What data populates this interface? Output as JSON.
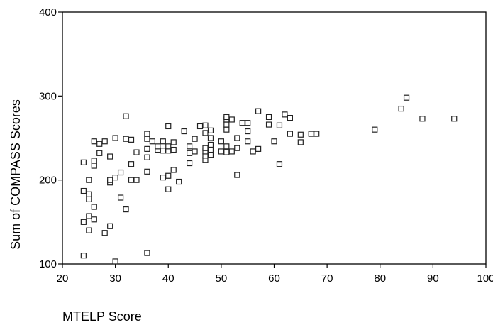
{
  "chart_data": {
    "type": "scatter",
    "xlabel": "MTELP Score",
    "ylabel": "Sum of COMPASS Scores",
    "xlim": [
      20,
      100
    ],
    "ylim": [
      100,
      400
    ],
    "xticks": [
      20,
      30,
      40,
      50,
      60,
      70,
      80,
      90,
      100
    ],
    "yticks": [
      100,
      200,
      300,
      400
    ],
    "xtick_labels": [
      "20",
      "30",
      "40",
      "50",
      "60",
      "70",
      "80",
      "90",
      "100"
    ],
    "ytick_labels": [
      "100",
      "200",
      "300",
      "400"
    ],
    "grid": false,
    "marker": "open-square",
    "points": [
      [
        24,
        110
      ],
      [
        24,
        150
      ],
      [
        24,
        187
      ],
      [
        24,
        221
      ],
      [
        25,
        140
      ],
      [
        25,
        157
      ],
      [
        25,
        177
      ],
      [
        25,
        183
      ],
      [
        25,
        200
      ],
      [
        26,
        153
      ],
      [
        26,
        168
      ],
      [
        26,
        217
      ],
      [
        26,
        223
      ],
      [
        26,
        246
      ],
      [
        27,
        232
      ],
      [
        27,
        243
      ],
      [
        28,
        137
      ],
      [
        28,
        246
      ],
      [
        29,
        145
      ],
      [
        29,
        197
      ],
      [
        29,
        200
      ],
      [
        29,
        228
      ],
      [
        30,
        103
      ],
      [
        30,
        203
      ],
      [
        30,
        250
      ],
      [
        31,
        179
      ],
      [
        31,
        209
      ],
      [
        32,
        165
      ],
      [
        32,
        249
      ],
      [
        32,
        276
      ],
      [
        33,
        200
      ],
      [
        33,
        219
      ],
      [
        33,
        248
      ],
      [
        34,
        200
      ],
      [
        34,
        233
      ],
      [
        36,
        113
      ],
      [
        36,
        210
      ],
      [
        36,
        227
      ],
      [
        36,
        237
      ],
      [
        36,
        249
      ],
      [
        36,
        255
      ],
      [
        37,
        246
      ],
      [
        38,
        236
      ],
      [
        38,
        240
      ],
      [
        39,
        203
      ],
      [
        39,
        235
      ],
      [
        39,
        246
      ],
      [
        40,
        189
      ],
      [
        40,
        205
      ],
      [
        40,
        235
      ],
      [
        40,
        240
      ],
      [
        40,
        264
      ],
      [
        41,
        212
      ],
      [
        41,
        236
      ],
      [
        41,
        245
      ],
      [
        42,
        198
      ],
      [
        43,
        258
      ],
      [
        44,
        220
      ],
      [
        44,
        232
      ],
      [
        44,
        240
      ],
      [
        45,
        234
      ],
      [
        45,
        249
      ],
      [
        46,
        264
      ],
      [
        47,
        224
      ],
      [
        47,
        229
      ],
      [
        47,
        234
      ],
      [
        47,
        238
      ],
      [
        47,
        256
      ],
      [
        47,
        265
      ],
      [
        48,
        230
      ],
      [
        48,
        236
      ],
      [
        48,
        242
      ],
      [
        48,
        250
      ],
      [
        48,
        259
      ],
      [
        50,
        234
      ],
      [
        50,
        246
      ],
      [
        51,
        233
      ],
      [
        51,
        240
      ],
      [
        51,
        260
      ],
      [
        51,
        266
      ],
      [
        51,
        272
      ],
      [
        51,
        275
      ],
      [
        52,
        234
      ],
      [
        52,
        272
      ],
      [
        53,
        206
      ],
      [
        53,
        238
      ],
      [
        53,
        250
      ],
      [
        54,
        268
      ],
      [
        55,
        246
      ],
      [
        55,
        258
      ],
      [
        55,
        268
      ],
      [
        56,
        234
      ],
      [
        57,
        237
      ],
      [
        57,
        282
      ],
      [
        59,
        266
      ],
      [
        59,
        275
      ],
      [
        60,
        246
      ],
      [
        61,
        219
      ],
      [
        61,
        265
      ],
      [
        62,
        278
      ],
      [
        63,
        255
      ],
      [
        63,
        274
      ],
      [
        65,
        245
      ],
      [
        65,
        254
      ],
      [
        67,
        255
      ],
      [
        68,
        255
      ],
      [
        79,
        260
      ],
      [
        84,
        285
      ],
      [
        85,
        298
      ],
      [
        88,
        273
      ],
      [
        94,
        273
      ]
    ]
  }
}
